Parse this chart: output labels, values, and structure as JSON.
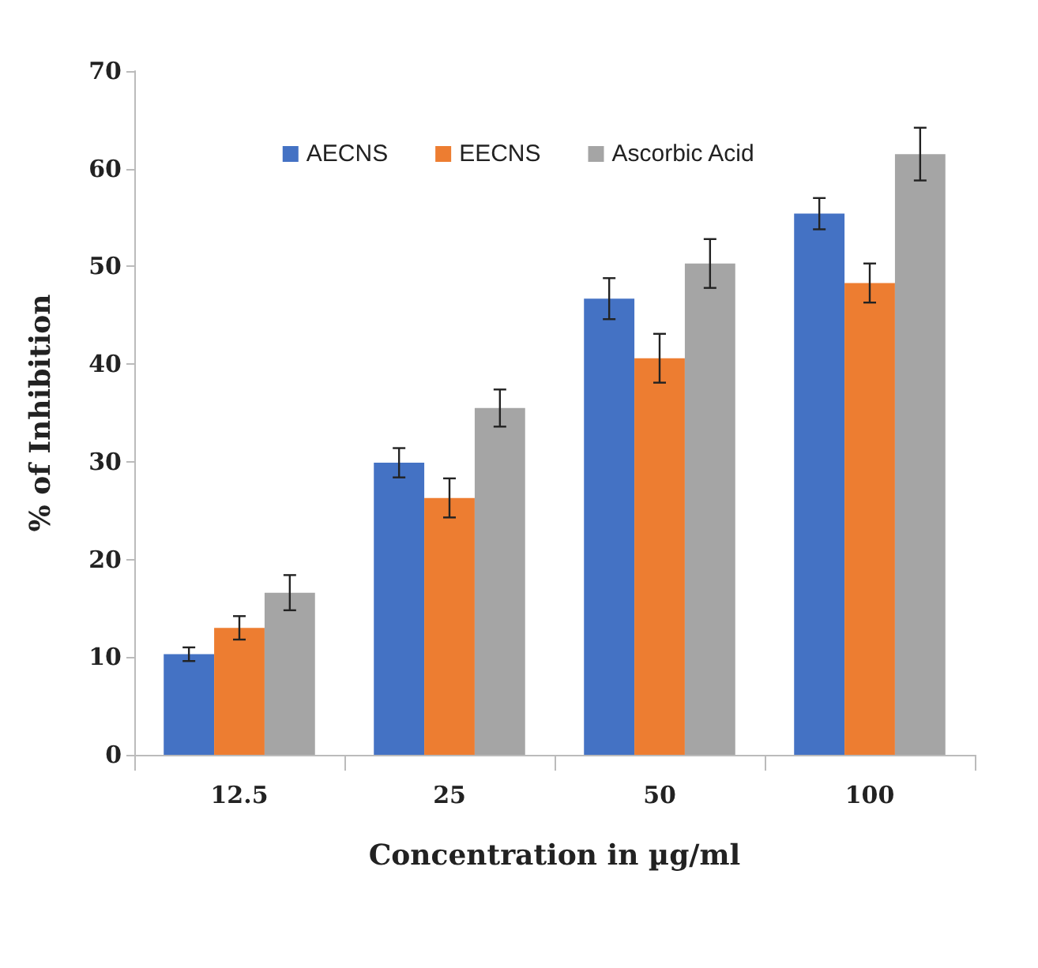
{
  "chart_data": {
    "type": "bar",
    "xlabel": "Concentration in µg/ml",
    "ylabel": "% of Inhibition",
    "categories": [
      "12.5",
      "25",
      "50",
      "100"
    ],
    "series": [
      {
        "name": "AECNS",
        "color": "#4472c4",
        "values": [
          10.3,
          29.9,
          46.7,
          55.4
        ],
        "errors": [
          0.7,
          1.5,
          2.1,
          1.6
        ]
      },
      {
        "name": "EECNS",
        "color": "#ed7d31",
        "values": [
          13.0,
          26.3,
          40.6,
          48.3
        ],
        "errors": [
          1.2,
          2.0,
          2.5,
          2.0
        ]
      },
      {
        "name": "Ascorbic Acid",
        "color": "#a5a5a5",
        "values": [
          16.6,
          35.5,
          50.3,
          61.5
        ],
        "errors": [
          1.8,
          1.9,
          2.5,
          2.7
        ]
      }
    ],
    "ylim": [
      0,
      70
    ],
    "yticks": [
      0,
      10,
      20,
      30,
      40,
      50,
      60,
      70
    ],
    "grid": false,
    "legend": "top"
  }
}
